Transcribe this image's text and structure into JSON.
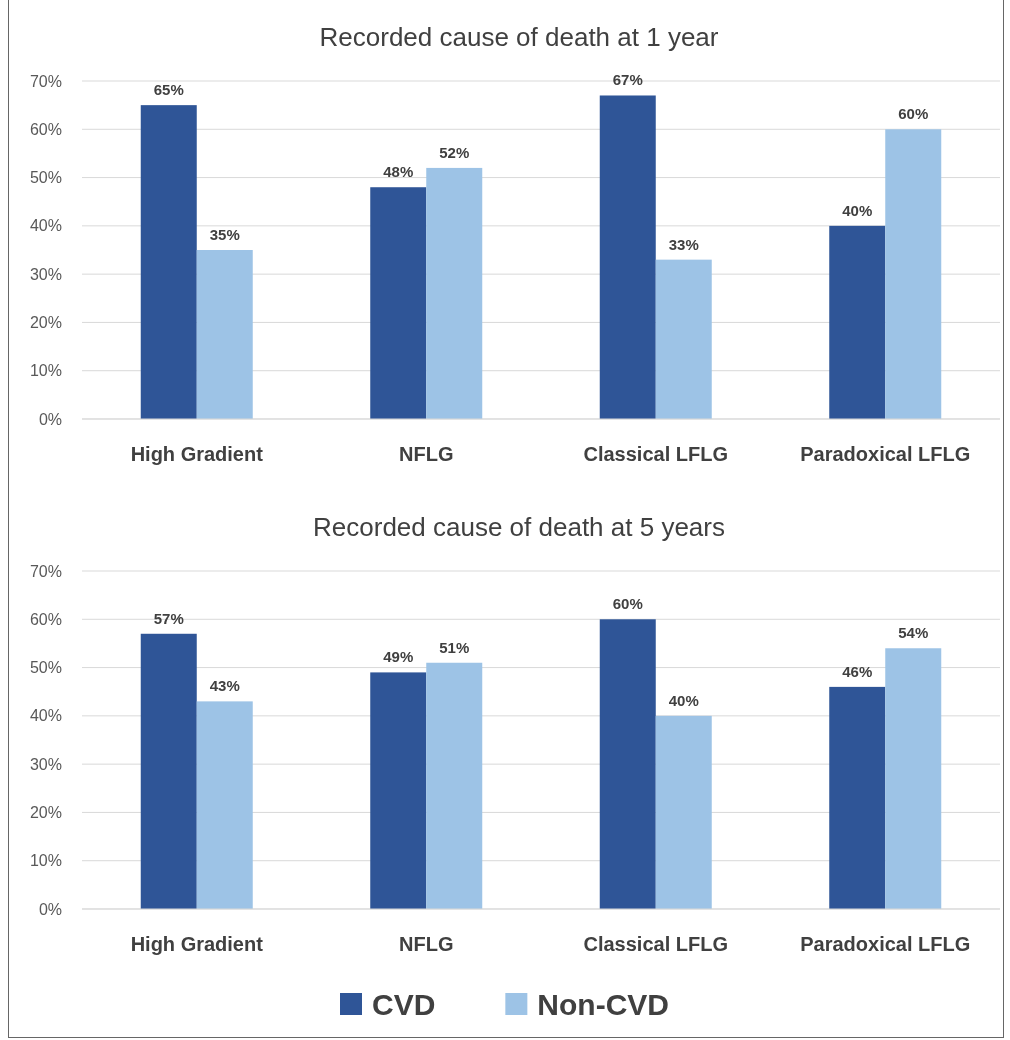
{
  "chart_data": [
    {
      "type": "bar",
      "title": "Recorded cause of death at 1 year",
      "categories": [
        "High Gradient",
        "NFLG",
        "Classical LFLG",
        "Paradoxical LFLG"
      ],
      "series": [
        {
          "color": "#2f5597",
          "values": [
            65,
            48,
            67,
            40
          ],
          "value_labels": [
            "65%",
            "48%",
            "67%",
            "40%"
          ]
        },
        {
          "color": "#9dc3e6",
          "values": [
            35,
            52,
            33,
            60
          ],
          "value_labels": [
            "35%",
            "52%",
            "33%",
            "60%"
          ]
        }
      ],
      "ylim": [
        0,
        70
      ],
      "yticks": [
        {
          "value": 0,
          "label": "0%"
        },
        {
          "value": 10,
          "label": "10%"
        },
        {
          "value": 20,
          "label": "20%"
        },
        {
          "value": 30,
          "label": "30%"
        },
        {
          "value": 40,
          "label": "40%"
        },
        {
          "value": 50,
          "label": "50%"
        },
        {
          "value": 60,
          "label": "60%"
        },
        {
          "value": 70,
          "label": "70%"
        }
      ],
      "grid": "y",
      "legend": false
    },
    {
      "type": "bar",
      "title": "Recorded cause of death at 5 years",
      "categories": [
        "High Gradient",
        "NFLG",
        "Classical LFLG",
        "Paradoxical LFLG"
      ],
      "series": [
        {
          "name": "CVD",
          "color": "#2f5597",
          "values": [
            57,
            49,
            60,
            46
          ],
          "value_labels": [
            "57%",
            "49%",
            "60%",
            "46%"
          ]
        },
        {
          "name": "Non-CVD",
          "color": "#9dc3e6",
          "values": [
            43,
            51,
            40,
            54
          ],
          "value_labels": [
            "43%",
            "51%",
            "40%",
            "54%"
          ]
        }
      ],
      "ylim": [
        0,
        70
      ],
      "yticks": [
        {
          "value": 0,
          "label": "0%"
        },
        {
          "value": 10,
          "label": "10%"
        },
        {
          "value": 20,
          "label": "20%"
        },
        {
          "value": 30,
          "label": "30%"
        },
        {
          "value": 40,
          "label": "40%"
        },
        {
          "value": 50,
          "label": "50%"
        },
        {
          "value": 60,
          "label": "60%"
        },
        {
          "value": 70,
          "label": "70%"
        }
      ],
      "grid": "y",
      "legend": "bottom"
    }
  ]
}
